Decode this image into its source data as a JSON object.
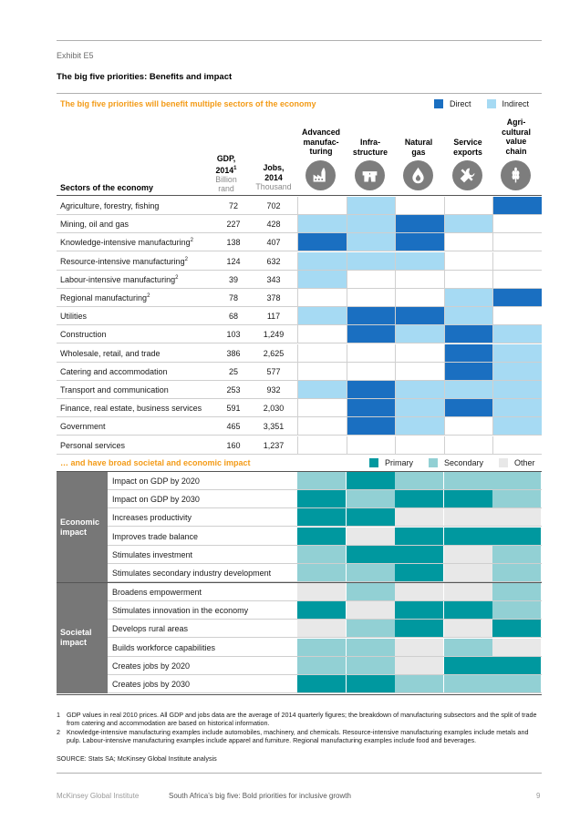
{
  "exhibit": {
    "label": "Exhibit E5",
    "title": "The big five priorities: Benefits and impact"
  },
  "section1": {
    "heading": "The big five priorities will benefit multiple sectors of the economy",
    "legend": [
      {
        "label": "Direct",
        "color": "#1a6fc1"
      },
      {
        "label": "Indirect",
        "color": "#a6daf3"
      }
    ],
    "columns": [
      {
        "lines": [
          "Advanced",
          "manufac-",
          "turing"
        ],
        "icon": "factory-icon"
      },
      {
        "lines": [
          "Infra-",
          "structure"
        ],
        "icon": "road-icon"
      },
      {
        "lines": [
          "Natural",
          "gas"
        ],
        "icon": "flame-drop-icon"
      },
      {
        "lines": [
          "Service",
          "exports"
        ],
        "icon": "tools-icon"
      },
      {
        "lines": [
          "Agri-",
          "cultural",
          "value",
          "chain"
        ],
        "icon": "wheat-icon"
      }
    ],
    "gdp_header": {
      "title_line1": "GDP,",
      "title_line2": "2014",
      "sup": "1",
      "unit_line1": "Billion",
      "unit_line2": "rand"
    },
    "jobs_header": {
      "title_line1": "Jobs,",
      "title_line2": "2014",
      "unit": "Thousand"
    },
    "sectors_header": "Sectors of the economy",
    "rows": [
      {
        "sector": "Agriculture, forestry, fishing",
        "sup": "",
        "gdp": "72",
        "jobs": "702",
        "cells": [
          "",
          "I",
          "",
          "",
          "D"
        ]
      },
      {
        "sector": "Mining, oil and gas",
        "sup": "",
        "gdp": "227",
        "jobs": "428",
        "cells": [
          "I",
          "I",
          "D",
          "I",
          ""
        ]
      },
      {
        "sector": "Knowledge-intensive manufacturing",
        "sup": "2",
        "gdp": "138",
        "jobs": "407",
        "cells": [
          "D",
          "I",
          "D",
          "",
          ""
        ]
      },
      {
        "sector": "Resource-intensive manufacturing",
        "sup": "2",
        "gdp": "124",
        "jobs": "632",
        "cells": [
          "I",
          "I",
          "I",
          "",
          ""
        ]
      },
      {
        "sector": "Labour-intensive manufacturing",
        "sup": "2",
        "gdp": "39",
        "jobs": "343",
        "cells": [
          "I",
          "",
          "",
          "",
          ""
        ]
      },
      {
        "sector": "Regional manufacturing",
        "sup": "2",
        "gdp": "78",
        "jobs": "378",
        "cells": [
          "",
          "",
          "",
          "I",
          "D"
        ]
      },
      {
        "sector": "Utilities",
        "sup": "",
        "gdp": "68",
        "jobs": "117",
        "cells": [
          "I",
          "D",
          "D",
          "I",
          ""
        ]
      },
      {
        "sector": "Construction",
        "sup": "",
        "gdp": "103",
        "jobs": "1,249",
        "cells": [
          "",
          "D",
          "I",
          "D",
          "I"
        ]
      },
      {
        "sector": "Wholesale, retail, and trade",
        "sup": "",
        "gdp": "386",
        "jobs": "2,625",
        "cells": [
          "",
          "",
          "",
          "D",
          "I"
        ]
      },
      {
        "sector": "Catering and accommodation",
        "sup": "",
        "gdp": "25",
        "jobs": "577",
        "cells": [
          "",
          "",
          "",
          "D",
          "I"
        ]
      },
      {
        "sector": "Transport and communication",
        "sup": "",
        "gdp": "253",
        "jobs": "932",
        "cells": [
          "I",
          "D",
          "I",
          "I",
          "I"
        ]
      },
      {
        "sector": "Finance, real estate, business services",
        "sup": "",
        "gdp": "591",
        "jobs": "2,030",
        "cells": [
          "",
          "D",
          "I",
          "D",
          "I"
        ]
      },
      {
        "sector": "Government",
        "sup": "",
        "gdp": "465",
        "jobs": "3,351",
        "cells": [
          "",
          "D",
          "I",
          "",
          "I"
        ]
      },
      {
        "sector": "Personal services",
        "sup": "",
        "gdp": "160",
        "jobs": "1,237",
        "cells": [
          "",
          "",
          "",
          "",
          ""
        ]
      }
    ]
  },
  "section2": {
    "heading": "… and have broad societal and economic impact",
    "legend": [
      {
        "label": "Primary",
        "color": "#00989f"
      },
      {
        "label": "Secondary",
        "color": "#92d0d4"
      },
      {
        "label": "Other",
        "color": "#e8e8e8"
      }
    ],
    "groups": [
      {
        "label_lines": [
          "Economic",
          "impact"
        ],
        "rows": [
          {
            "label": "Impact on GDP by 2020",
            "cells": [
              "S",
              "P",
              "S",
              "S",
              "S"
            ]
          },
          {
            "label": "Impact on GDP by 2030",
            "cells": [
              "P",
              "S",
              "P",
              "P",
              "S"
            ]
          },
          {
            "label": "Increases productivity",
            "cells": [
              "P",
              "P",
              "O",
              "O",
              "O"
            ]
          },
          {
            "label": "Improves trade balance",
            "cells": [
              "P",
              "O",
              "P",
              "P",
              "P"
            ]
          },
          {
            "label": "Stimulates investment",
            "cells": [
              "S",
              "P",
              "P",
              "O",
              "S"
            ]
          },
          {
            "label": "Stimulates secondary industry development",
            "cells": [
              "S",
              "S",
              "P",
              "O",
              "S"
            ]
          }
        ]
      },
      {
        "label_lines": [
          "Societal",
          "impact"
        ],
        "rows": [
          {
            "label": "Broadens empowerment",
            "cells": [
              "O",
              "S",
              "O",
              "O",
              "S"
            ]
          },
          {
            "label": "Stimulates innovation in the economy",
            "cells": [
              "P",
              "O",
              "P",
              "P",
              "S"
            ]
          },
          {
            "label": "Develops rural areas",
            "cells": [
              "O",
              "S",
              "P",
              "O",
              "P"
            ]
          },
          {
            "label": "Builds workforce capabilities",
            "cells": [
              "S",
              "S",
              "O",
              "S",
              "O"
            ]
          },
          {
            "label": "Creates jobs by 2020",
            "cells": [
              "S",
              "S",
              "O",
              "P",
              "P"
            ]
          },
          {
            "label": "Creates jobs by 2030",
            "cells": [
              "P",
              "P",
              "S",
              "S",
              "S"
            ]
          }
        ]
      }
    ]
  },
  "footnotes": [
    {
      "num": "1",
      "text": "GDP values in real 2010 prices. All GDP and jobs data are the average of 2014 quarterly figures; the breakdown of manufacturing subsectors and the split of trade from catering and accommodation are based on historical information."
    },
    {
      "num": "2",
      "text": "Knowledge-intensive manufacturing examples include automobiles, machinery, and chemicals. Resource-intensive manufacturing examples include metals and pulp. Labour-intensive manufacturing examples include apparel and furniture. Regional manufacturing examples include food and beverages."
    }
  ],
  "source": "SOURCE: Stats SA; McKinsey Global Institute analysis",
  "footer": {
    "left": "McKinsey Global Institute",
    "middle": "South Africa’s big five: Bold priorities for inclusive growth",
    "page": "9"
  }
}
